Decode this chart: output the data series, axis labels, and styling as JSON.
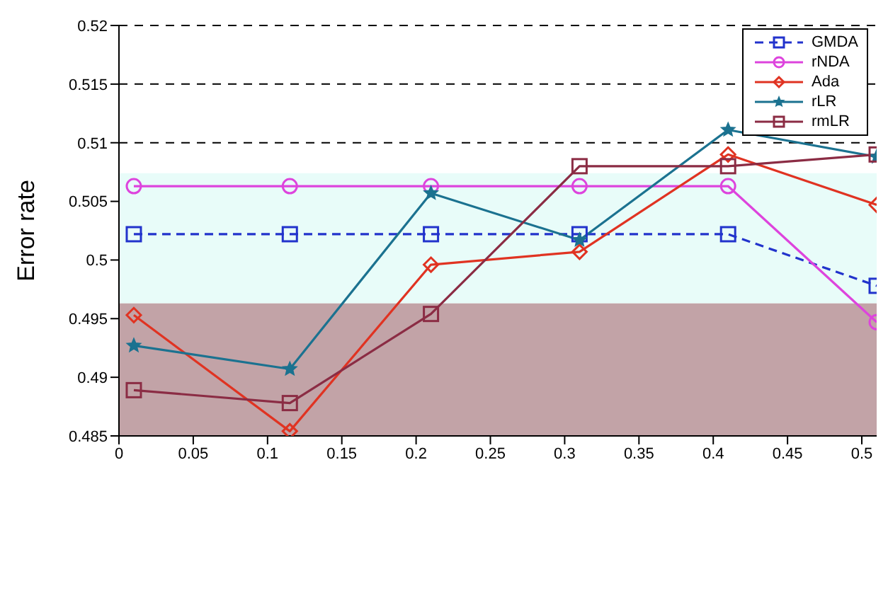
{
  "chart_data": {
    "type": "line",
    "ylabel": "Error rate",
    "x": [
      0.01,
      0.115,
      0.21,
      0.31,
      0.41,
      0.51
    ],
    "xlim": [
      0,
      0.51
    ],
    "xticks": [
      0,
      0.05,
      0.1,
      0.15,
      0.2,
      0.25,
      0.3,
      0.35,
      0.4,
      0.45,
      0.5
    ],
    "ylim": [
      0.485,
      0.52
    ],
    "yticks": [
      0.485,
      0.49,
      0.495,
      0.5,
      0.505,
      0.51,
      0.515,
      0.52
    ],
    "grid": "y",
    "legend": "top right",
    "bands": [
      {
        "axis": "y",
        "from": 0.4963,
        "to": 0.5074,
        "color": "#e8fcf9"
      },
      {
        "axis": "y",
        "from": 0.485,
        "to": 0.4963,
        "color": "#c2a3a7"
      }
    ],
    "series": [
      {
        "name": "GMDA",
        "color": "#2233cc",
        "marker": "square",
        "line_style": "dashed",
        "values": [
          0.5022,
          0.5022,
          0.5022,
          0.5022,
          0.5022,
          0.4978
        ]
      },
      {
        "name": "rNDA",
        "color": "#dd44dd",
        "marker": "circle",
        "line_style": "solid",
        "values": [
          0.5063,
          0.5063,
          0.5063,
          0.5063,
          0.5063,
          0.4947
        ]
      },
      {
        "name": "Ada",
        "color": "#e03322",
        "marker": "diamond",
        "line_style": "solid",
        "values": [
          0.4953,
          0.4854,
          0.4996,
          0.5007,
          0.509,
          0.5047
        ]
      },
      {
        "name": "rLR",
        "color": "#1b7290",
        "marker": "star",
        "line_style": "solid",
        "values": [
          0.4927,
          0.4907,
          0.5057,
          0.5017,
          0.5111,
          0.5088
        ]
      },
      {
        "name": "rmLR",
        "color": "#8b2c44",
        "marker": "square",
        "line_style": "solid",
        "values": [
          0.4889,
          0.4878,
          0.4954,
          0.508,
          0.508,
          0.509
        ]
      }
    ]
  }
}
